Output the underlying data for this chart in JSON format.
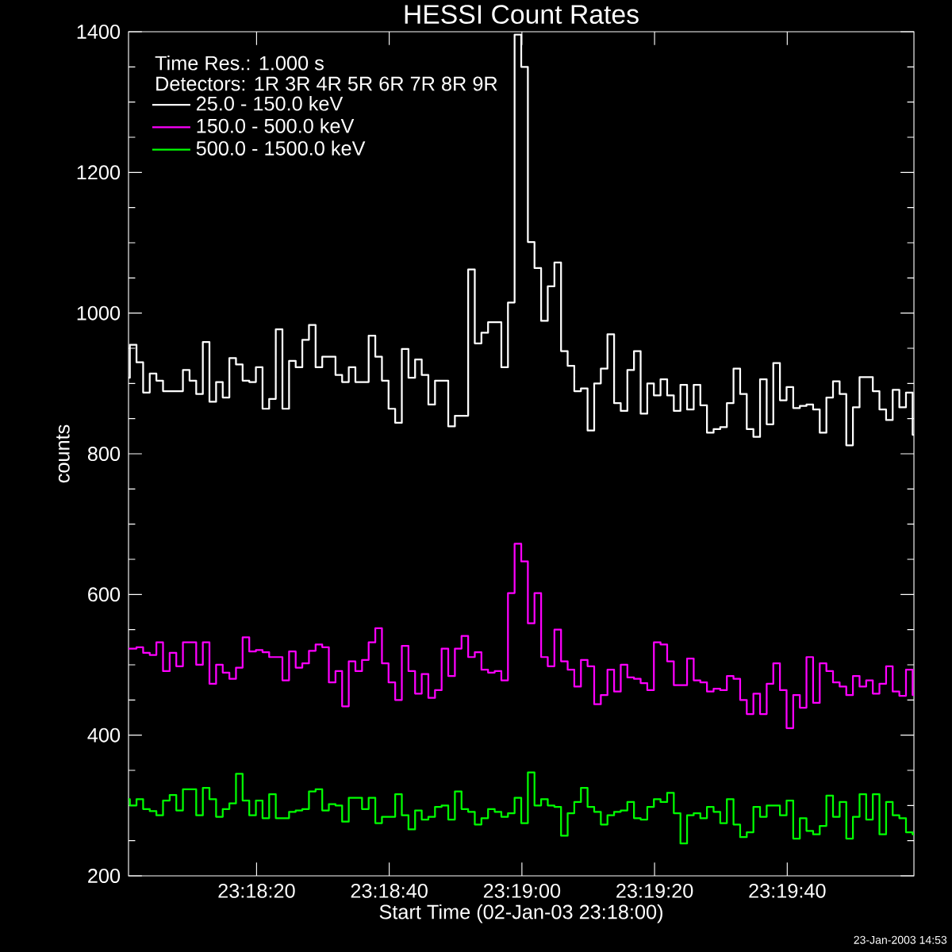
{
  "chart_data": {
    "type": "step",
    "title": "HESSI Count Rates",
    "xlabel": "Start Time (02-Jan-03 23:18:00)",
    "ylabel": "counts",
    "annotations": [
      "Time Res.: 1.000 s",
      "Detectors: 1R 3R 4R 5R 6R 7R 8R 9R",
      "23-Jan-2003 14:53"
    ],
    "x": [
      23.300194,
      23.30025,
      23.300528,
      23.300806,
      23.301083,
      23.301361,
      23.301639,
      23.301917,
      23.302194,
      23.302472,
      23.30275,
      23.303028,
      23.303306,
      23.303583,
      23.303861,
      23.304139,
      23.304417,
      23.304694,
      23.304972,
      23.30525,
      23.305528,
      23.305806,
      23.306083,
      23.306361,
      23.306639,
      23.306917,
      23.307194,
      23.307472,
      23.30775,
      23.308028,
      23.308306,
      23.308583,
      23.308861,
      23.309139,
      23.309417,
      23.309694,
      23.309972,
      23.31025,
      23.310528,
      23.310806,
      23.311083,
      23.311361,
      23.311639,
      23.311917,
      23.312194,
      23.312472,
      23.31275,
      23.313028,
      23.313306,
      23.313583,
      23.313861,
      23.314139,
      23.314417,
      23.314694,
      23.314972,
      23.31525,
      23.315528,
      23.315806,
      23.316083,
      23.316361,
      23.316639,
      23.316917,
      23.317194,
      23.317472,
      23.31775,
      23.318028,
      23.318306,
      23.318583,
      23.318861,
      23.319139,
      23.319417,
      23.319694,
      23.319972,
      23.32025,
      23.320528,
      23.320806,
      23.321083,
      23.321361,
      23.321639,
      23.321917,
      23.322194,
      23.322472,
      23.32275,
      23.323028,
      23.323306,
      23.323583,
      23.323861,
      23.324139,
      23.324417,
      23.324694,
      23.324972,
      23.32525,
      23.325528,
      23.325806,
      23.326083,
      23.326361,
      23.326639,
      23.326917,
      23.327194,
      23.327472,
      23.32775,
      23.328028,
      23.328306,
      23.328583,
      23.328861,
      23.329139,
      23.329417,
      23.329694,
      23.329972,
      23.33025,
      23.330528,
      23.330806,
      23.331083,
      23.331361,
      23.331639,
      23.331917,
      23.332194,
      23.332472,
      23.33275,
      23.333028
    ],
    "xlim": [
      23.300194,
      23.333083
    ],
    "ylim": [
      200,
      1400
    ],
    "xticks": [
      {
        "value": 23.305556,
        "label": "23:18:20"
      },
      {
        "value": 23.311111,
        "label": "23:18:40"
      },
      {
        "value": 23.316667,
        "label": "23:19:00"
      },
      {
        "value": 23.322222,
        "label": "23:19:20"
      },
      {
        "value": 23.327778,
        "label": "23:19:40"
      }
    ],
    "yticks": [
      200,
      400,
      600,
      800,
      1000,
      1200,
      1400
    ],
    "legend": "top left",
    "grid": false,
    "marker": "none",
    "line_style": "solid",
    "series": [
      {
        "name": "25.0  -  150.0 keV",
        "color": "#ffffff",
        "values": [
          908,
          955,
          930,
          887,
          914,
          904,
          889,
          889,
          889,
          919,
          904,
          885,
          959,
          874,
          902,
          880,
          936,
          927,
          904,
          902,
          923,
          864,
          878,
          977,
          864,
          932,
          923,
          962,
          983,
          923,
          938,
          938,
          912,
          902,
          923,
          902,
          902,
          968,
          938,
          904,
          864,
          844,
          949,
          908,
          934,
          912,
          870,
          904,
          904,
          839,
          854,
          854,
          1062,
          957,
          972,
          987,
          987,
          923,
          1015,
          1396,
          1350,
          1101,
          1064,
          989,
          1038,
          1072,
          946,
          925,
          889,
          893,
          833,
          900,
          921,
          970,
          872,
          861,
          919,
          946,
          857,
          900,
          883,
          906,
          883,
          861,
          898,
          863,
          898,
          869,
          830,
          835,
          838,
          872,
          921,
          885,
          835,
          824,
          906,
          842,
          929,
          876,
          895,
          865,
          868,
          870,
          863,
          830,
          880,
          903,
          885,
          812,
          866,
          909,
          909,
          889,
          863,
          848,
          891,
          866,
          887,
          827
        ]
      },
      {
        "name": "150.0  -  500.0 keV",
        "color": "#ff00ff",
        "values": [
          523,
          523,
          525,
          517,
          514,
          532,
          491,
          517,
          498,
          532,
          532,
          500,
          532,
          473,
          500,
          489,
          480,
          496,
          539,
          519,
          521,
          518,
          511,
          511,
          478,
          519,
          496,
          502,
          520,
          529,
          525,
          475,
          491,
          441,
          505,
          491,
          507,
          532,
          552,
          502,
          475,
          450,
          527,
          491,
          459,
          487,
          453,
          464,
          523,
          484,
          523,
          541,
          511,
          518,
          493,
          489,
          491,
          478,
          602,
          672,
          647,
          559,
          602,
          511,
          498,
          550,
          505,
          493,
          469,
          507,
          498,
          444,
          457,
          493,
          462,
          500,
          482,
          480,
          474,
          464,
          532,
          529,
          505,
          471,
          471,
          509,
          478,
          475,
          462,
          466,
          464,
          484,
          480,
          450,
          430,
          459,
          430,
          473,
          502,
          464,
          410,
          457,
          439,
          511,
          446,
          502,
          491,
          475,
          469,
          457,
          484,
          469,
          478,
          459,
          473,
          498,
          462,
          456,
          493,
          457
        ]
      },
      {
        "name": "500.0  -  1500.0 keV",
        "color": "#00ff00",
        "values": [
          309,
          300,
          309,
          295,
          292,
          286,
          307,
          315,
          293,
          323,
          323,
          286,
          325,
          309,
          284,
          295,
          303,
          345,
          307,
          286,
          307,
          282,
          316,
          282,
          282,
          291,
          293,
          295,
          320,
          323,
          293,
          302,
          300,
          277,
          311,
          311,
          295,
          311,
          275,
          284,
          284,
          316,
          286,
          266,
          293,
          280,
          284,
          298,
          300,
          280,
          320,
          295,
          291,
          273,
          282,
          295,
          291,
          284,
          289,
          311,
          275,
          347,
          300,
          309,
          300,
          298,
          257,
          289,
          305,
          325,
          298,
          291,
          273,
          286,
          291,
          293,
          305,
          282,
          280,
          298,
          309,
          305,
          318,
          289,
          246,
          286,
          289,
          282,
          298,
          291,
          275,
          309,
          273,
          255,
          262,
          298,
          284,
          300,
          300,
          286,
          307,
          253,
          282,
          264,
          259,
          271,
          314,
          284,
          305,
          253,
          284,
          316,
          280,
          316,
          259,
          305,
          286,
          282,
          262,
          259
        ]
      }
    ]
  }
}
